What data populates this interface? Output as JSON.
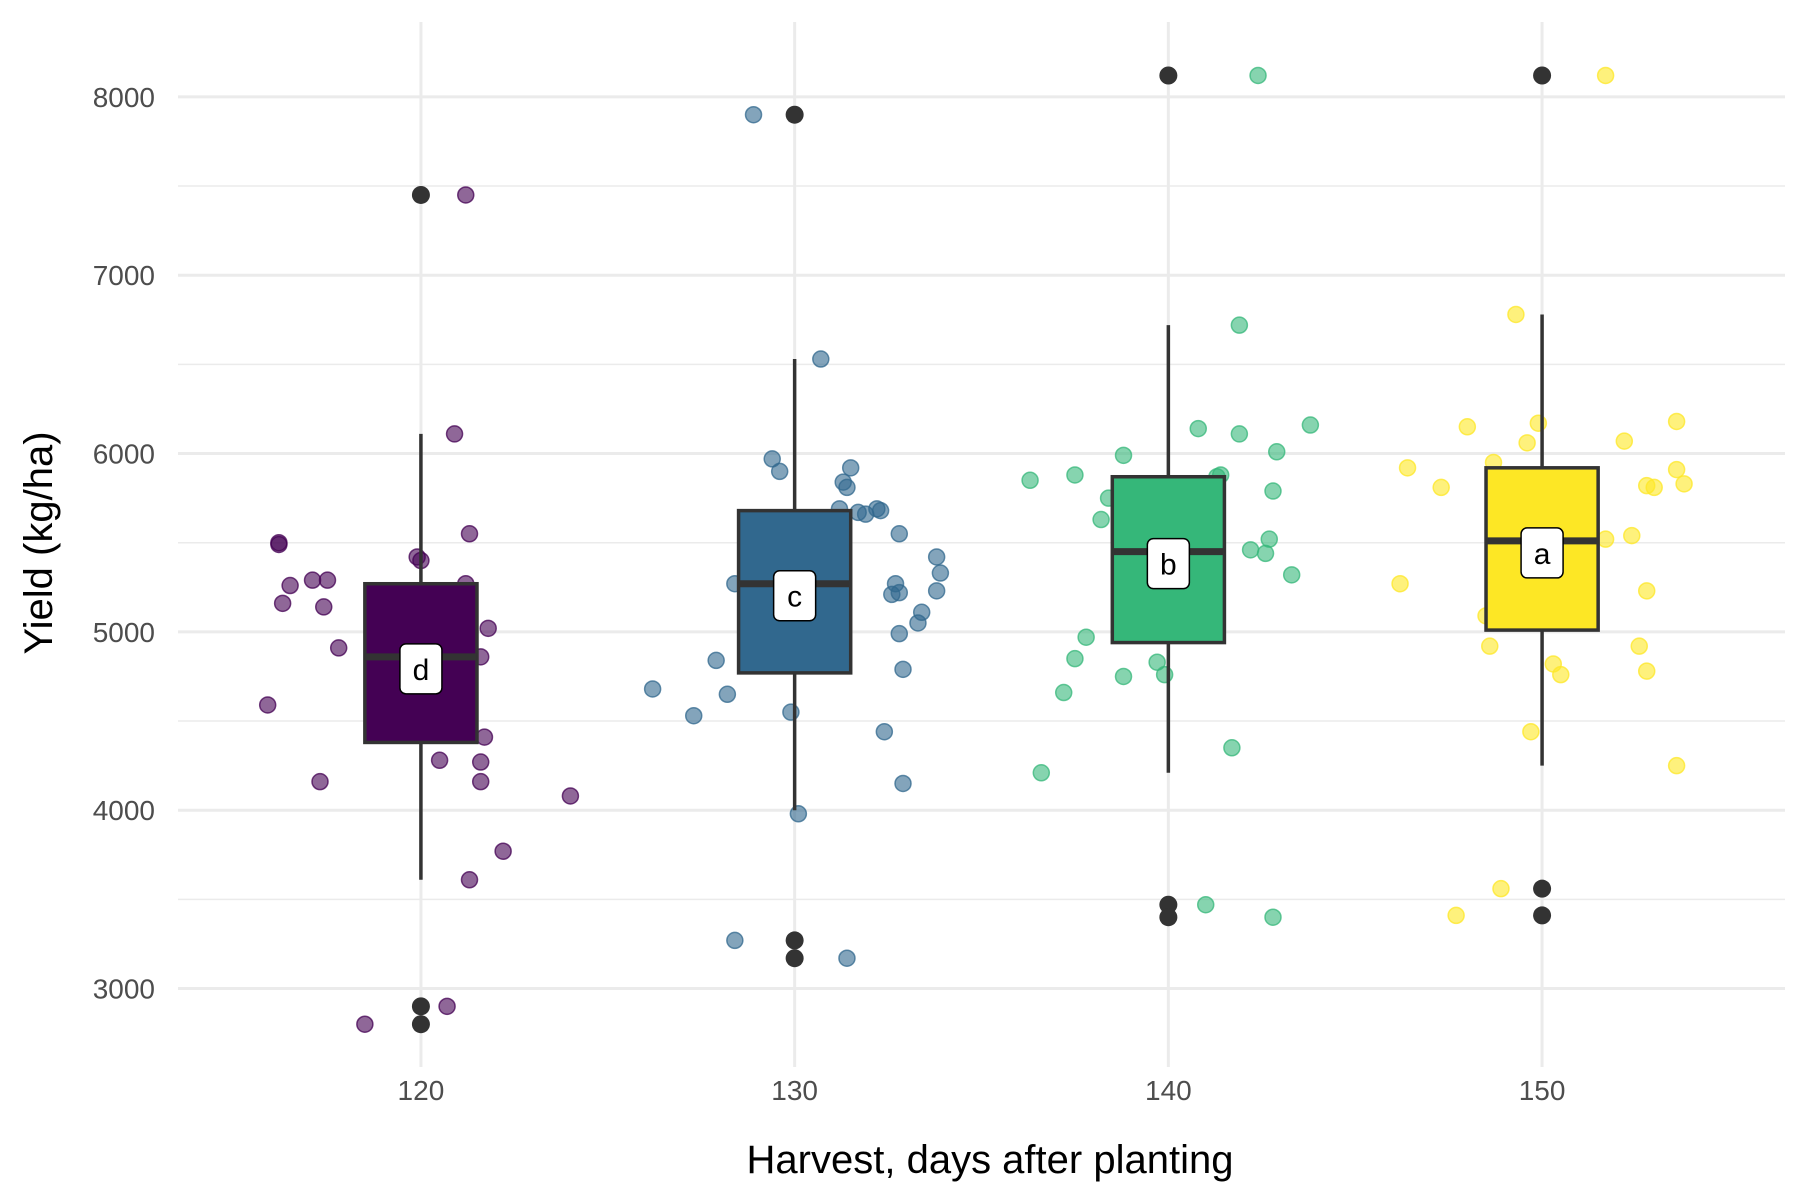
{
  "chart_data": {
    "type": "box",
    "title": "",
    "xlabel": "Harvest, days after planting",
    "ylabel": "Yield (kg/ha)",
    "xlim": [
      113.5,
      156.5
    ],
    "ylim": [
      2560,
      8420
    ],
    "x_ticks": [
      120,
      130,
      140,
      150
    ],
    "y_ticks": [
      3000,
      4000,
      5000,
      6000,
      7000,
      8000
    ],
    "grid": true,
    "groups": [
      {
        "x": 120,
        "color": "#440154",
        "q1": 4380,
        "median": 4860,
        "q3": 5270,
        "whisker_low": 3610,
        "whisker_high": 6110,
        "letter": "d",
        "outliers": [
          7450,
          2900,
          2800
        ],
        "points": [
          {
            "x": 116.2,
            "y": 5500
          },
          {
            "x": 116.2,
            "y": 5490
          },
          {
            "x": 116.5,
            "y": 5260
          },
          {
            "x": 116.3,
            "y": 5160
          },
          {
            "x": 117.1,
            "y": 5290
          },
          {
            "x": 117.5,
            "y": 5290
          },
          {
            "x": 117.4,
            "y": 5140
          },
          {
            "x": 117.8,
            "y": 4910
          },
          {
            "x": 115.9,
            "y": 4590
          },
          {
            "x": 117.3,
            "y": 4160
          },
          {
            "x": 118.5,
            "y": 2800
          },
          {
            "x": 118.8,
            "y": 4710
          },
          {
            "x": 119.9,
            "y": 5420
          },
          {
            "x": 120.0,
            "y": 5400
          },
          {
            "x": 120.5,
            "y": 4280
          },
          {
            "x": 120.7,
            "y": 2900
          },
          {
            "x": 120.9,
            "y": 6110
          },
          {
            "x": 121.2,
            "y": 7450
          },
          {
            "x": 121.2,
            "y": 5270
          },
          {
            "x": 121.3,
            "y": 5550
          },
          {
            "x": 121.6,
            "y": 4860
          },
          {
            "x": 121.7,
            "y": 4410
          },
          {
            "x": 121.6,
            "y": 4270
          },
          {
            "x": 121.6,
            "y": 4160
          },
          {
            "x": 121.3,
            "y": 3610
          },
          {
            "x": 121.8,
            "y": 5020
          },
          {
            "x": 122.2,
            "y": 3770
          },
          {
            "x": 124.0,
            "y": 4080
          }
        ]
      },
      {
        "x": 130,
        "color": "#31688e",
        "q1": 4770,
        "median": 5270,
        "q3": 5680,
        "whisker_low": 4000,
        "whisker_high": 6530,
        "letter": "c",
        "outliers": [
          7900,
          3270,
          3170
        ],
        "points": [
          {
            "x": 126.2,
            "y": 4680
          },
          {
            "x": 127.3,
            "y": 4530
          },
          {
            "x": 127.9,
            "y": 4840
          },
          {
            "x": 128.2,
            "y": 4650
          },
          {
            "x": 128.4,
            "y": 5270
          },
          {
            "x": 128.7,
            "y": 5590
          },
          {
            "x": 128.4,
            "y": 3270
          },
          {
            "x": 128.9,
            "y": 7900
          },
          {
            "x": 129.4,
            "y": 5970
          },
          {
            "x": 129.6,
            "y": 5900
          },
          {
            "x": 129.9,
            "y": 4550
          },
          {
            "x": 130.1,
            "y": 3980
          },
          {
            "x": 130.7,
            "y": 6530
          },
          {
            "x": 131.2,
            "y": 5690
          },
          {
            "x": 131.3,
            "y": 5840
          },
          {
            "x": 131.4,
            "y": 5810
          },
          {
            "x": 131.5,
            "y": 5920
          },
          {
            "x": 131.4,
            "y": 3170
          },
          {
            "x": 131.7,
            "y": 5670
          },
          {
            "x": 131.9,
            "y": 5660
          },
          {
            "x": 132.2,
            "y": 5690
          },
          {
            "x": 132.3,
            "y": 5680
          },
          {
            "x": 132.4,
            "y": 4440
          },
          {
            "x": 132.6,
            "y": 5210
          },
          {
            "x": 132.7,
            "y": 5270
          },
          {
            "x": 132.8,
            "y": 5220
          },
          {
            "x": 132.8,
            "y": 4990
          },
          {
            "x": 132.9,
            "y": 4790
          },
          {
            "x": 132.9,
            "y": 4150
          },
          {
            "x": 132.8,
            "y": 5550
          },
          {
            "x": 133.3,
            "y": 5050
          },
          {
            "x": 133.4,
            "y": 5110
          },
          {
            "x": 133.8,
            "y": 5420
          },
          {
            "x": 133.9,
            "y": 5330
          },
          {
            "x": 133.8,
            "y": 5230
          }
        ]
      },
      {
        "x": 140,
        "color": "#35b779",
        "q1": 4940,
        "median": 5450,
        "q3": 5870,
        "whisker_low": 4210,
        "whisker_high": 6720,
        "letter": "b",
        "outliers": [
          8120,
          3470,
          3400
        ],
        "points": [
          {
            "x": 136.3,
            "y": 5850
          },
          {
            "x": 136.6,
            "y": 4210
          },
          {
            "x": 137.2,
            "y": 4660
          },
          {
            "x": 137.5,
            "y": 5880
          },
          {
            "x": 137.5,
            "y": 4850
          },
          {
            "x": 137.8,
            "y": 4970
          },
          {
            "x": 138.2,
            "y": 5630
          },
          {
            "x": 138.4,
            "y": 5750
          },
          {
            "x": 138.8,
            "y": 5990
          },
          {
            "x": 138.8,
            "y": 4750
          },
          {
            "x": 139.7,
            "y": 4830
          },
          {
            "x": 139.9,
            "y": 4760
          },
          {
            "x": 140.4,
            "y": 5500
          },
          {
            "x": 140.8,
            "y": 6140
          },
          {
            "x": 141.0,
            "y": 3470
          },
          {
            "x": 141.3,
            "y": 5870
          },
          {
            "x": 141.4,
            "y": 5880
          },
          {
            "x": 141.7,
            "y": 4350
          },
          {
            "x": 141.9,
            "y": 6720
          },
          {
            "x": 141.9,
            "y": 6110
          },
          {
            "x": 142.2,
            "y": 5460
          },
          {
            "x": 142.4,
            "y": 8120
          },
          {
            "x": 142.6,
            "y": 5440
          },
          {
            "x": 142.7,
            "y": 5520
          },
          {
            "x": 142.8,
            "y": 3400
          },
          {
            "x": 142.8,
            "y": 5790
          },
          {
            "x": 142.9,
            "y": 6010
          },
          {
            "x": 143.3,
            "y": 5320
          },
          {
            "x": 143.8,
            "y": 6160
          }
        ]
      },
      {
        "x": 150,
        "color": "#fde725",
        "q1": 5010,
        "median": 5510,
        "q3": 5920,
        "whisker_low": 4250,
        "whisker_high": 6780,
        "letter": "a",
        "outliers": [
          8120,
          3560,
          3410
        ],
        "points": [
          {
            "x": 146.2,
            "y": 5270
          },
          {
            "x": 146.4,
            "y": 5920
          },
          {
            "x": 147.3,
            "y": 5810
          },
          {
            "x": 147.7,
            "y": 3410
          },
          {
            "x": 148.0,
            "y": 6150
          },
          {
            "x": 148.5,
            "y": 5090
          },
          {
            "x": 148.6,
            "y": 4920
          },
          {
            "x": 148.7,
            "y": 5950
          },
          {
            "x": 148.9,
            "y": 3560
          },
          {
            "x": 149.2,
            "y": 5500
          },
          {
            "x": 149.3,
            "y": 6780
          },
          {
            "x": 149.6,
            "y": 6060
          },
          {
            "x": 149.7,
            "y": 4440
          },
          {
            "x": 150.0,
            "y": 5050
          },
          {
            "x": 149.9,
            "y": 6170
          },
          {
            "x": 150.3,
            "y": 4820
          },
          {
            "x": 150.5,
            "y": 4760
          },
          {
            "x": 151.7,
            "y": 5520
          },
          {
            "x": 151.7,
            "y": 8120
          },
          {
            "x": 152.2,
            "y": 6070
          },
          {
            "x": 152.4,
            "y": 5540
          },
          {
            "x": 152.6,
            "y": 4920
          },
          {
            "x": 152.8,
            "y": 4780
          },
          {
            "x": 152.8,
            "y": 5230
          },
          {
            "x": 152.8,
            "y": 5820
          },
          {
            "x": 153.0,
            "y": 5810
          },
          {
            "x": 153.6,
            "y": 5910
          },
          {
            "x": 153.6,
            "y": 6180
          },
          {
            "x": 153.6,
            "y": 4250
          },
          {
            "x": 153.8,
            "y": 5830
          }
        ]
      }
    ]
  }
}
